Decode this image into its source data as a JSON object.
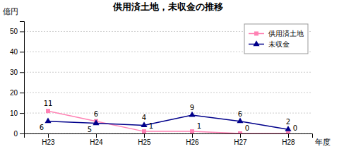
{
  "chart_data": {
    "type": "line",
    "title": "供用済土地，未収金の推移",
    "xlabel": "年度",
    "ylabel": "億円",
    "categories": [
      "H23",
      "H24",
      "H25",
      "H26",
      "H27",
      "H28"
    ],
    "series": [
      {
        "name": "供用済土地",
        "color": "#ff82b4",
        "marker": "square",
        "values": [
          11,
          6,
          1,
          1,
          0,
          0
        ]
      },
      {
        "name": "未収金",
        "color": "#00008b",
        "marker": "triangle",
        "values": [
          6,
          5,
          4,
          9,
          6,
          2
        ]
      }
    ],
    "ylim": [
      0,
      55
    ],
    "yticks": [
      0,
      10,
      20,
      30,
      40,
      50
    ],
    "grid": true,
    "legend": "upper right",
    "data_labels": true
  }
}
